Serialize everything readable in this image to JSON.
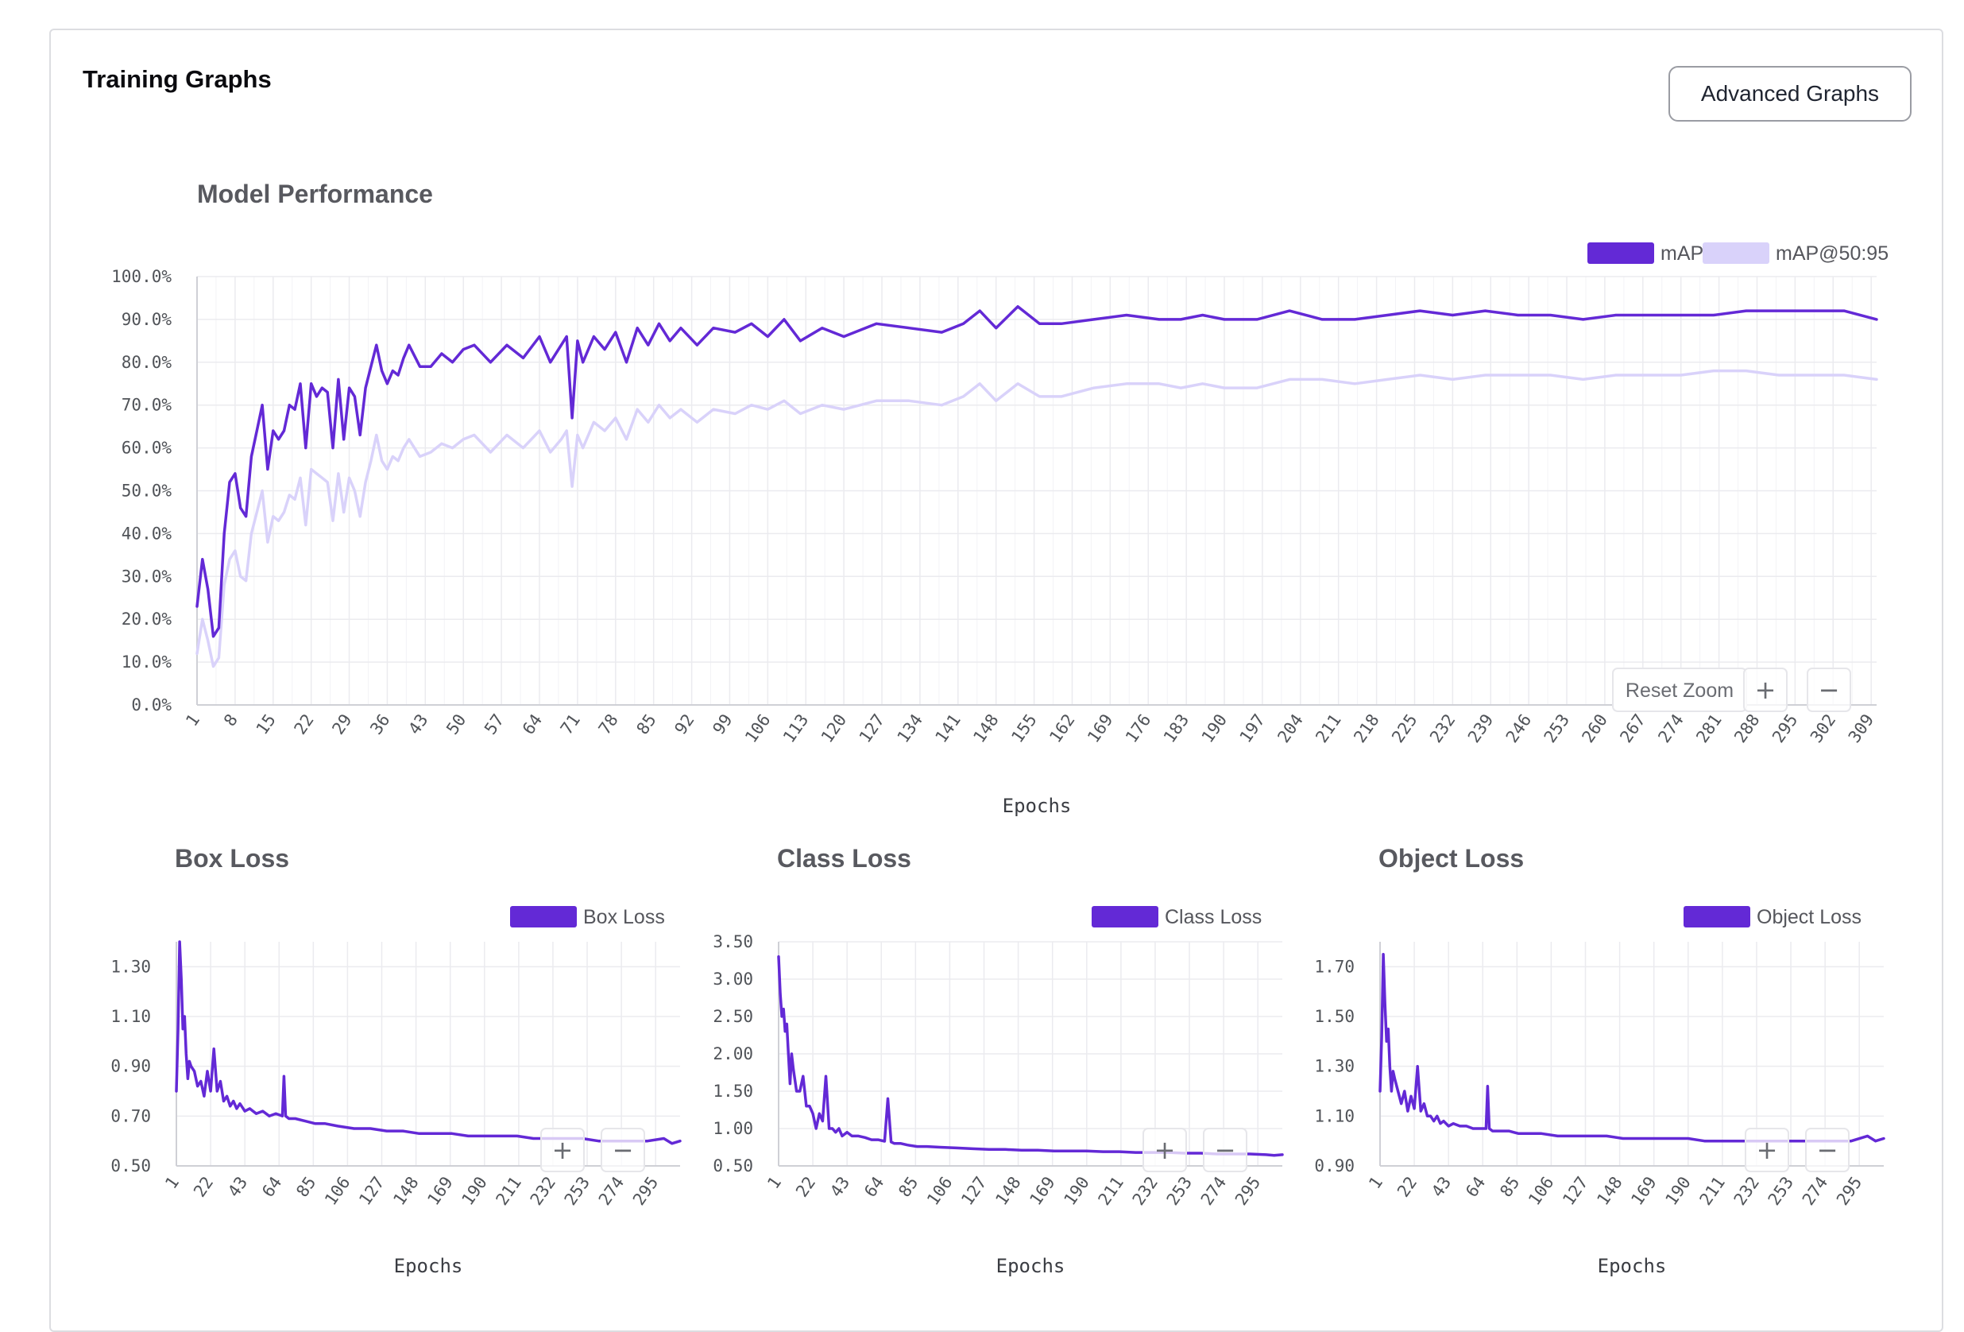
{
  "header": {
    "title": "Training Graphs",
    "advanced_label": "Advanced Graphs"
  },
  "controls": {
    "reset_zoom": "Reset Zoom",
    "zoom_in": "+",
    "zoom_out": "−"
  },
  "colors": {
    "primary": "#6329d6",
    "secondary": "#d9d2fa",
    "grid": "#ebebef",
    "axis": "#cfd0d6"
  },
  "chart_data": [
    {
      "id": "performance",
      "type": "line",
      "title": "Model Performance",
      "xlabel": "Epochs",
      "x_range": [
        1,
        310
      ],
      "x_tick_labels": [
        "1",
        "8",
        "15",
        "22",
        "29",
        "36",
        "43",
        "50",
        "57",
        "64",
        "71",
        "78",
        "85",
        "92",
        "99",
        "106",
        "113",
        "120",
        "127",
        "134",
        "141",
        "148",
        "155",
        "162",
        "169",
        "176",
        "183",
        "190",
        "197",
        "204",
        "211",
        "218",
        "225",
        "232",
        "239",
        "246",
        "253",
        "260",
        "267",
        "274",
        "281",
        "288",
        "295",
        "302",
        "309"
      ],
      "ylim": [
        0,
        100
      ],
      "y_ticks": [
        "0.0%",
        "10.0%",
        "20.0%",
        "30.0%",
        "40.0%",
        "50.0%",
        "60.0%",
        "70.0%",
        "80.0%",
        "90.0%",
        "100.0%"
      ],
      "legend_position": "top-right",
      "show_controls": [
        "reset",
        "plus",
        "minus"
      ],
      "series": [
        {
          "name": "mAP",
          "color": "#6329d6",
          "x": [
            1,
            2,
            3,
            4,
            5,
            6,
            7,
            8,
            9,
            10,
            11,
            12,
            13,
            14,
            15,
            16,
            17,
            18,
            19,
            20,
            21,
            22,
            23,
            24,
            25,
            26,
            27,
            28,
            29,
            30,
            31,
            32,
            33,
            34,
            35,
            36,
            37,
            38,
            39,
            40,
            42,
            44,
            46,
            48,
            50,
            52,
            55,
            58,
            61,
            64,
            66,
            68,
            69,
            70,
            71,
            72,
            74,
            76,
            78,
            80,
            82,
            84,
            86,
            88,
            90,
            93,
            96,
            100,
            103,
            106,
            109,
            112,
            116,
            120,
            126,
            132,
            138,
            142,
            145,
            148,
            152,
            156,
            160,
            166,
            172,
            178,
            182,
            186,
            190,
            196,
            202,
            208,
            214,
            220,
            226,
            232,
            238,
            244,
            250,
            256,
            262,
            268,
            274,
            280,
            286,
            292,
            298,
            304,
            310
          ],
          "y": [
            23,
            34,
            27,
            16,
            18,
            40,
            52,
            54,
            46,
            44,
            58,
            64,
            70,
            55,
            64,
            62,
            64,
            70,
            69,
            75,
            60,
            75,
            72,
            74,
            73,
            60,
            76,
            62,
            74,
            72,
            63,
            74,
            79,
            84,
            78,
            75,
            78,
            77,
            81,
            84,
            79,
            79,
            82,
            80,
            83,
            84,
            80,
            84,
            81,
            86,
            80,
            84,
            86,
            67,
            85,
            80,
            86,
            83,
            87,
            80,
            88,
            84,
            89,
            85,
            88,
            84,
            88,
            87,
            89,
            86,
            90,
            85,
            88,
            86,
            89,
            88,
            87,
            89,
            92,
            88,
            93,
            89,
            89,
            90,
            91,
            90,
            90,
            91,
            90,
            90,
            92,
            90,
            90,
            91,
            92,
            91,
            92,
            91,
            91,
            90,
            91,
            91,
            91,
            91,
            92,
            92,
            92,
            92,
            90
          ]
        },
        {
          "name": "mAP@50:95",
          "color": "#d9d2fa",
          "x": [
            1,
            2,
            3,
            4,
            5,
            6,
            7,
            8,
            9,
            10,
            11,
            12,
            13,
            14,
            15,
            16,
            17,
            18,
            19,
            20,
            21,
            22,
            23,
            24,
            25,
            26,
            27,
            28,
            29,
            30,
            31,
            32,
            33,
            34,
            35,
            36,
            37,
            38,
            39,
            40,
            42,
            44,
            46,
            48,
            50,
            52,
            55,
            58,
            61,
            64,
            66,
            68,
            69,
            70,
            71,
            72,
            74,
            76,
            78,
            80,
            82,
            84,
            86,
            88,
            90,
            93,
            96,
            100,
            103,
            106,
            109,
            112,
            116,
            120,
            126,
            132,
            138,
            142,
            145,
            148,
            152,
            156,
            160,
            166,
            172,
            178,
            182,
            186,
            190,
            196,
            202,
            208,
            214,
            220,
            226,
            232,
            238,
            244,
            250,
            256,
            262,
            268,
            274,
            280,
            286,
            292,
            298,
            304,
            310
          ],
          "y": [
            12,
            20,
            15,
            9,
            11,
            28,
            34,
            36,
            30,
            29,
            40,
            45,
            50,
            38,
            44,
            43,
            45,
            49,
            48,
            53,
            42,
            55,
            54,
            53,
            52,
            43,
            54,
            45,
            53,
            50,
            44,
            52,
            57,
            63,
            57,
            55,
            58,
            57,
            60,
            62,
            58,
            59,
            61,
            60,
            62,
            63,
            59,
            63,
            60,
            64,
            59,
            62,
            64,
            51,
            63,
            60,
            66,
            64,
            67,
            62,
            69,
            66,
            70,
            67,
            69,
            66,
            69,
            68,
            70,
            69,
            71,
            68,
            70,
            69,
            71,
            71,
            70,
            72,
            75,
            71,
            75,
            72,
            72,
            74,
            75,
            75,
            74,
            75,
            74,
            74,
            76,
            76,
            75,
            76,
            77,
            76,
            77,
            77,
            77,
            76,
            77,
            77,
            77,
            78,
            78,
            77,
            77,
            77,
            76
          ]
        }
      ]
    },
    {
      "id": "box",
      "type": "line",
      "title": "Box Loss",
      "xlabel": "Epochs",
      "x_range": [
        1,
        310
      ],
      "x_tick_labels": [
        "1",
        "22",
        "43",
        "64",
        "85",
        "106",
        "127",
        "148",
        "169",
        "190",
        "211",
        "232",
        "253",
        "274",
        "295"
      ],
      "ylim": [
        0.5,
        1.4
      ],
      "y_ticks": [
        "0.50",
        "0.70",
        "0.90",
        "1.10",
        "1.30"
      ],
      "legend_position": "top-right",
      "show_controls": [
        "plus",
        "minus"
      ],
      "series": [
        {
          "name": "Box Loss",
          "color": "#6329d6",
          "x": [
            1,
            2,
            3,
            4,
            5,
            6,
            7,
            8,
            9,
            10,
            12,
            14,
            16,
            18,
            20,
            22,
            24,
            26,
            28,
            30,
            32,
            34,
            36,
            38,
            40,
            43,
            46,
            50,
            54,
            58,
            62,
            66,
            67,
            68,
            70,
            74,
            80,
            86,
            92,
            100,
            110,
            120,
            130,
            140,
            150,
            160,
            170,
            180,
            190,
            200,
            210,
            220,
            230,
            240,
            250,
            260,
            270,
            280,
            290,
            300,
            305,
            310
          ],
          "y": [
            0.8,
            1.05,
            1.4,
            1.25,
            1.05,
            1.1,
            0.95,
            0.85,
            0.92,
            0.9,
            0.88,
            0.82,
            0.84,
            0.78,
            0.88,
            0.8,
            0.97,
            0.8,
            0.84,
            0.76,
            0.78,
            0.74,
            0.76,
            0.73,
            0.75,
            0.72,
            0.73,
            0.71,
            0.72,
            0.7,
            0.71,
            0.7,
            0.86,
            0.7,
            0.69,
            0.69,
            0.68,
            0.67,
            0.67,
            0.66,
            0.65,
            0.65,
            0.64,
            0.64,
            0.63,
            0.63,
            0.63,
            0.62,
            0.62,
            0.62,
            0.62,
            0.61,
            0.61,
            0.61,
            0.61,
            0.6,
            0.6,
            0.6,
            0.6,
            0.61,
            0.59,
            0.6
          ]
        }
      ]
    },
    {
      "id": "class",
      "type": "line",
      "title": "Class Loss",
      "xlabel": "Epochs",
      "x_range": [
        1,
        310
      ],
      "x_tick_labels": [
        "1",
        "22",
        "43",
        "64",
        "85",
        "106",
        "127",
        "148",
        "169",
        "190",
        "211",
        "232",
        "253",
        "274",
        "295"
      ],
      "ylim": [
        0.5,
        3.5
      ],
      "y_ticks": [
        "0.50",
        "1.00",
        "1.50",
        "2.00",
        "2.50",
        "3.00",
        "3.50"
      ],
      "legend_position": "top-right",
      "show_controls": [
        "plus",
        "minus"
      ],
      "series": [
        {
          "name": "Class Loss",
          "color": "#6329d6",
          "x": [
            1,
            2,
            3,
            4,
            5,
            6,
            7,
            8,
            9,
            10,
            12,
            14,
            16,
            18,
            20,
            22,
            24,
            26,
            28,
            30,
            32,
            34,
            36,
            38,
            40,
            43,
            46,
            50,
            54,
            58,
            62,
            66,
            68,
            70,
            72,
            76,
            80,
            86,
            92,
            100,
            110,
            120,
            130,
            140,
            150,
            160,
            170,
            180,
            190,
            200,
            210,
            220,
            230,
            240,
            250,
            260,
            270,
            280,
            290,
            300,
            305,
            310
          ],
          "y": [
            3.3,
            2.8,
            2.5,
            2.6,
            2.3,
            2.4,
            2.0,
            1.6,
            2.0,
            1.8,
            1.5,
            1.5,
            1.7,
            1.3,
            1.3,
            1.2,
            1.0,
            1.2,
            1.1,
            1.7,
            1.0,
            1.0,
            0.95,
            1.0,
            0.9,
            0.95,
            0.9,
            0.9,
            0.88,
            0.85,
            0.85,
            0.83,
            1.4,
            0.82,
            0.8,
            0.8,
            0.78,
            0.76,
            0.76,
            0.75,
            0.74,
            0.73,
            0.72,
            0.72,
            0.71,
            0.71,
            0.7,
            0.7,
            0.7,
            0.69,
            0.69,
            0.68,
            0.68,
            0.68,
            0.67,
            0.67,
            0.66,
            0.66,
            0.66,
            0.65,
            0.64,
            0.65
          ]
        }
      ]
    },
    {
      "id": "object",
      "type": "line",
      "title": "Object Loss",
      "xlabel": "Epochs",
      "x_range": [
        1,
        310
      ],
      "x_tick_labels": [
        "1",
        "22",
        "43",
        "64",
        "85",
        "106",
        "127",
        "148",
        "169",
        "190",
        "211",
        "232",
        "253",
        "274",
        "295"
      ],
      "ylim": [
        0.9,
        1.8
      ],
      "y_ticks": [
        "0.90",
        "1.10",
        "1.30",
        "1.50",
        "1.70"
      ],
      "legend_position": "top-right",
      "show_controls": [
        "plus",
        "minus"
      ],
      "series": [
        {
          "name": "Object Loss",
          "color": "#6329d6",
          "x": [
            1,
            2,
            3,
            4,
            5,
            6,
            7,
            8,
            9,
            10,
            12,
            14,
            16,
            18,
            20,
            22,
            24,
            26,
            28,
            30,
            32,
            34,
            36,
            38,
            40,
            43,
            46,
            50,
            54,
            58,
            62,
            66,
            67,
            68,
            70,
            74,
            80,
            86,
            92,
            100,
            110,
            120,
            130,
            140,
            150,
            160,
            170,
            180,
            190,
            200,
            210,
            220,
            230,
            240,
            250,
            260,
            270,
            280,
            290,
            300,
            305,
            310
          ],
          "y": [
            1.2,
            1.42,
            1.75,
            1.55,
            1.4,
            1.45,
            1.3,
            1.2,
            1.28,
            1.25,
            1.2,
            1.15,
            1.2,
            1.12,
            1.18,
            1.13,
            1.3,
            1.12,
            1.15,
            1.1,
            1.1,
            1.08,
            1.1,
            1.07,
            1.08,
            1.06,
            1.07,
            1.06,
            1.06,
            1.05,
            1.05,
            1.05,
            1.22,
            1.05,
            1.04,
            1.04,
            1.04,
            1.03,
            1.03,
            1.03,
            1.02,
            1.02,
            1.02,
            1.02,
            1.01,
            1.01,
            1.01,
            1.01,
            1.01,
            1.0,
            1.0,
            1.0,
            1.0,
            1.0,
            1.0,
            1.0,
            1.0,
            1.0,
            1.0,
            1.02,
            1.0,
            1.01
          ]
        }
      ]
    }
  ]
}
